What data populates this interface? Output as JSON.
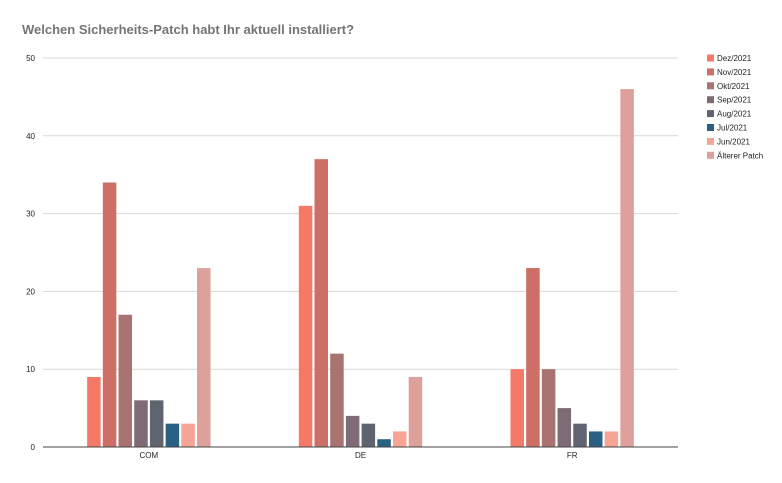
{
  "chart_data": {
    "type": "bar",
    "title": "Welchen Sicherheits-Patch habt Ihr aktuell installiert?",
    "xlabel": "",
    "ylabel": "",
    "categories": [
      "COM",
      "DE",
      "FR"
    ],
    "ylim": [
      0,
      50
    ],
    "yticks": [
      "0",
      "10",
      "20",
      "30",
      "40",
      "50"
    ],
    "grid": true,
    "legend_position": "right",
    "series": [
      {
        "name": "Dez/2021",
        "color": "#f47a67",
        "values": [
          9,
          31,
          10
        ]
      },
      {
        "name": "Nov/2021",
        "color": "#cd6f66",
        "values": [
          34,
          37,
          23
        ]
      },
      {
        "name": "Okt/2021",
        "color": "#a87371",
        "values": [
          17,
          12,
          10
        ]
      },
      {
        "name": "Sep/2021",
        "color": "#7f6b76",
        "values": [
          6,
          4,
          5
        ]
      },
      {
        "name": "Aug/2021",
        "color": "#5f6470",
        "values": [
          6,
          3,
          3
        ]
      },
      {
        "name": "Jul/2021",
        "color": "#2a6183",
        "values": [
          3,
          1,
          2
        ]
      },
      {
        "name": "Jun/2021",
        "color": "#f6a496",
        "values": [
          3,
          2,
          2
        ]
      },
      {
        "name": "Älterer Patch",
        "color": "#dea09b",
        "values": [
          23,
          9,
          46
        ]
      }
    ]
  }
}
